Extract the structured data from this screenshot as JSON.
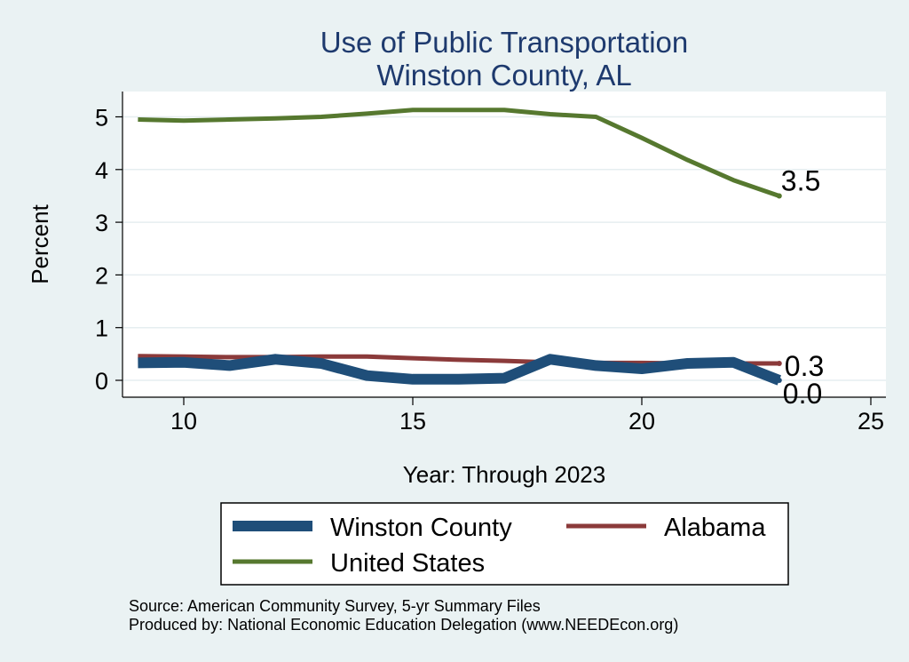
{
  "chart_data": {
    "type": "line",
    "title": "Use of Public Transportation",
    "subtitle": "Winston County, AL",
    "xlabel": "Year: Through 2023",
    "ylabel": "Percent",
    "xlim": [
      9,
      25
    ],
    "ylim": [
      0,
      5
    ],
    "x_ticks": [
      10,
      15,
      20,
      25
    ],
    "y_ticks": [
      0,
      1,
      2,
      3,
      4,
      5
    ],
    "grid": true,
    "legend_position": "bottom",
    "series": [
      {
        "name": "Winston County",
        "color": "#1f4e79",
        "x": [
          9,
          10,
          11,
          12,
          13,
          14,
          15,
          16,
          17,
          18,
          19,
          20,
          21,
          22,
          23
        ],
        "values": [
          0.33,
          0.34,
          0.28,
          0.4,
          0.32,
          0.09,
          0.02,
          0.02,
          0.04,
          0.4,
          0.28,
          0.22,
          0.32,
          0.34,
          0.0
        ],
        "end_label": "0.0"
      },
      {
        "name": "Alabama",
        "color": "#8b3a3a",
        "x": [
          9,
          10,
          11,
          12,
          13,
          14,
          15,
          16,
          17,
          18,
          19,
          20,
          21,
          22,
          23
        ],
        "values": [
          0.46,
          0.45,
          0.44,
          0.44,
          0.45,
          0.45,
          0.42,
          0.39,
          0.37,
          0.34,
          0.33,
          0.33,
          0.32,
          0.32,
          0.32
        ],
        "end_label": "0.3"
      },
      {
        "name": "United States",
        "color": "#56782f",
        "x": [
          9,
          10,
          11,
          12,
          13,
          14,
          15,
          16,
          17,
          18,
          19,
          20,
          21,
          22,
          23
        ],
        "values": [
          4.95,
          4.93,
          4.95,
          4.97,
          5.0,
          5.06,
          5.13,
          5.13,
          5.13,
          5.05,
          5.0,
          4.6,
          4.18,
          3.8,
          3.5
        ],
        "end_label": "3.5"
      }
    ]
  },
  "notes": {
    "source": "Source: American Community Survey, 5-yr Summary Files",
    "produced_by": "Produced by: National Economic Education Delegation (www.NEEDEcon.org)"
  }
}
